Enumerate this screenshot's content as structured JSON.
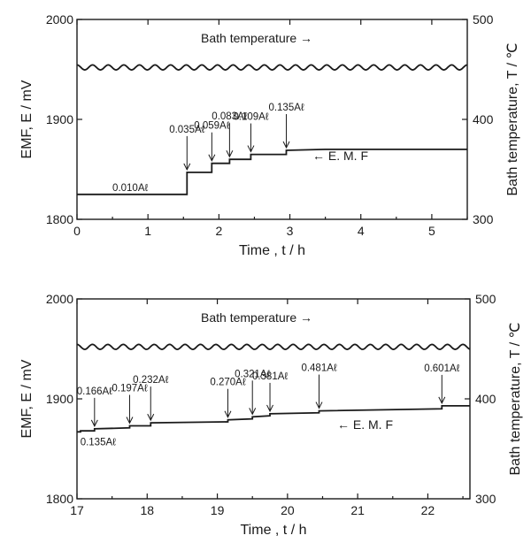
{
  "chart_data": [
    {
      "type": "line",
      "panel": "top",
      "xlabel": "Time , t / h",
      "ylabel_left": "EMF, E / mV",
      "ylabel_right": "Bath temperature, T / ℃",
      "xlim": [
        0,
        5.5
      ],
      "ylim_left": [
        1800,
        2000
      ],
      "ylim_right": [
        300,
        500
      ],
      "x_ticks": [
        "0",
        "1",
        "2",
        "3",
        "4",
        "5"
      ],
      "y_ticks_left": [
        "1800",
        "1900",
        "2000"
      ],
      "y_ticks_right": [
        "300",
        "400",
        "500"
      ],
      "series": [
        {
          "name": "E. M. F",
          "axis": "left",
          "x": [
            0,
            1.55,
            1.55,
            1.9,
            1.9,
            2.15,
            2.15,
            2.45,
            2.45,
            2.95,
            2.95,
            3.5,
            5.5
          ],
          "values": [
            1825,
            1825,
            1847,
            1847,
            1856,
            1856,
            1860,
            1860,
            1865,
            1865,
            1869,
            1870,
            1870
          ]
        },
        {
          "name": "Bath temperature",
          "axis": "right",
          "mean": 452,
          "ripple_amplitude": 2.5,
          "ripple_period_h": 0.22
        }
      ],
      "legend_labels": {
        "bath": "Bath temperature →",
        "emf": "← E. M. F"
      },
      "annotations": [
        {
          "text": "0.010Aℓ",
          "x": 0.75,
          "y": 1832,
          "arrow": false
        },
        {
          "text": "0.035Aℓ",
          "x": 1.55,
          "y": 1847,
          "arrow": true
        },
        {
          "text": "0.059Aℓ",
          "x": 1.9,
          "y": 1856,
          "arrow": true
        },
        {
          "text": "0.083Aℓ",
          "x": 2.15,
          "y": 1860,
          "arrow": true
        },
        {
          "text": "0.109Aℓ",
          "x": 2.45,
          "y": 1865,
          "arrow": true
        },
        {
          "text": "0.135Aℓ",
          "x": 2.95,
          "y": 1869,
          "arrow": true
        }
      ],
      "grid": false
    },
    {
      "type": "line",
      "panel": "bottom",
      "xlabel": "Time , t / h",
      "ylabel_left": "EMF, E / mV",
      "ylabel_right": "Bath temperature, T / ℃",
      "xlim": [
        17,
        22.6
      ],
      "ylim_left": [
        1800,
        2000
      ],
      "ylim_right": [
        300,
        500
      ],
      "x_ticks": [
        "17",
        "18",
        "19",
        "20",
        "21",
        "22"
      ],
      "y_ticks_left": [
        "1800",
        "1900",
        "2000"
      ],
      "y_ticks_right": [
        "300",
        "400",
        "500"
      ],
      "series": [
        {
          "name": "E. M. F",
          "axis": "left",
          "x": [
            17,
            17.05,
            17.05,
            17.25,
            17.25,
            17.75,
            17.75,
            18.05,
            18.05,
            19.15,
            19.15,
            19.5,
            19.5,
            19.75,
            19.75,
            20.45,
            20.45,
            22.2,
            22.2,
            22.6
          ],
          "values": [
            1867,
            1867,
            1868,
            1868,
            1870,
            1871,
            1873,
            1873,
            1876,
            1877,
            1879,
            1880,
            1882,
            1883,
            1885,
            1886,
            1888,
            1890,
            1893,
            1893
          ]
        },
        {
          "name": "Bath temperature",
          "axis": "right",
          "mean": 452,
          "ripple_amplitude": 2.5,
          "ripple_period_h": 0.22
        }
      ],
      "legend_labels": {
        "bath": "Bath temperature →",
        "emf": "← E. M. F"
      },
      "annotations": [
        {
          "text": "0.166Aℓ",
          "x": 17.25,
          "y": 1870,
          "arrow": true
        },
        {
          "text": "0.135Aℓ",
          "x": 17.3,
          "y": 1857,
          "arrow": false
        },
        {
          "text": "0.197Aℓ",
          "x": 17.75,
          "y": 1873,
          "arrow": true
        },
        {
          "text": "0.232Aℓ",
          "x": 18.05,
          "y": 1876,
          "arrow": true
        },
        {
          "text": "0.270Aℓ",
          "x": 19.15,
          "y": 1879,
          "arrow": true
        },
        {
          "text": "0.321Aℓ",
          "x": 19.5,
          "y": 1882,
          "arrow": true
        },
        {
          "text": "0.381Aℓ",
          "x": 19.75,
          "y": 1885,
          "arrow": true
        },
        {
          "text": "0.481Aℓ",
          "x": 20.45,
          "y": 1888,
          "arrow": true
        },
        {
          "text": "0.601Aℓ",
          "x": 22.2,
          "y": 1893,
          "arrow": true
        }
      ],
      "grid": false
    }
  ]
}
